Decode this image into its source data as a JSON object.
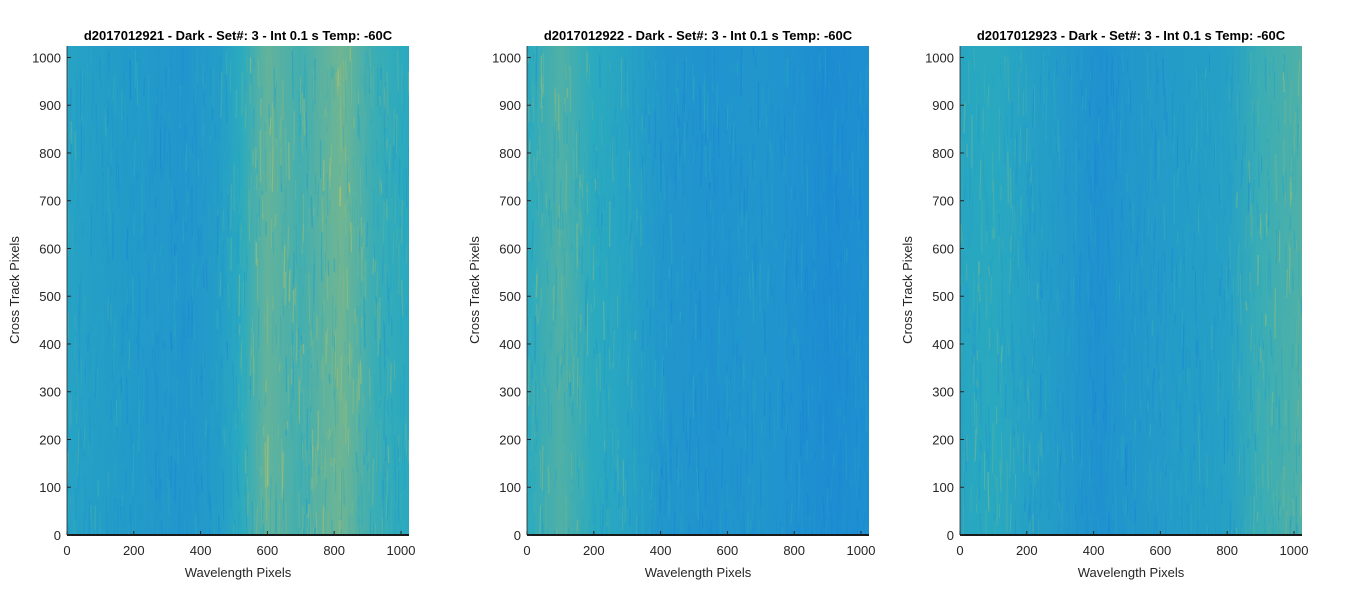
{
  "chart_data": [
    {
      "type": "heatmap",
      "title": "d2017012921 - Dark - Set#: 3 - Int 0.1 s Temp: -60C",
      "xlabel": "Wavelength Pixels",
      "ylabel": "Cross Track Pixels",
      "xlim": [
        0,
        1024
      ],
      "ylim": [
        0,
        1024
      ],
      "xticks": [
        0,
        200,
        400,
        600,
        800,
        1000
      ],
      "yticks": [
        0,
        100,
        200,
        300,
        400,
        500,
        600,
        700,
        800,
        900,
        1000
      ],
      "column_profile": [
        {
          "x": 0,
          "level": 0.4
        },
        {
          "x": 100,
          "level": 0.32
        },
        {
          "x": 250,
          "level": 0.26
        },
        {
          "x": 350,
          "level": 0.22
        },
        {
          "x": 450,
          "level": 0.3
        },
        {
          "x": 520,
          "level": 0.5
        },
        {
          "x": 600,
          "level": 0.68
        },
        {
          "x": 700,
          "level": 0.58
        },
        {
          "x": 820,
          "level": 0.72
        },
        {
          "x": 920,
          "level": 0.55
        },
        {
          "x": 1024,
          "level": 0.48
        }
      ]
    },
    {
      "type": "heatmap",
      "title": "d2017012922 - Dark - Set#: 3 - Int 0.1 s Temp: -60C",
      "xlabel": "Wavelength Pixels",
      "ylabel": "Cross Track Pixels",
      "xlim": [
        0,
        1024
      ],
      "ylim": [
        0,
        1024
      ],
      "xticks": [
        0,
        200,
        400,
        600,
        800,
        1000
      ],
      "yticks": [
        0,
        100,
        200,
        300,
        400,
        500,
        600,
        700,
        800,
        900,
        1000
      ],
      "column_profile": [
        {
          "x": 0,
          "level": 0.5
        },
        {
          "x": 100,
          "level": 0.62
        },
        {
          "x": 200,
          "level": 0.5
        },
        {
          "x": 300,
          "level": 0.4
        },
        {
          "x": 400,
          "level": 0.24
        },
        {
          "x": 550,
          "level": 0.18
        },
        {
          "x": 700,
          "level": 0.22
        },
        {
          "x": 800,
          "level": 0.16
        },
        {
          "x": 900,
          "level": 0.1
        },
        {
          "x": 1024,
          "level": 0.14
        }
      ]
    },
    {
      "type": "heatmap",
      "title": "d2017012923 - Dark - Set#: 3 - Int 0.1 s Temp: -60C",
      "xlabel": "Wavelength Pixels",
      "ylabel": "Cross Track Pixels",
      "xlim": [
        0,
        1024
      ],
      "ylim": [
        0,
        1024
      ],
      "xticks": [
        0,
        200,
        400,
        600,
        800,
        1000
      ],
      "yticks": [
        0,
        100,
        200,
        300,
        400,
        500,
        600,
        700,
        800,
        900,
        1000
      ],
      "column_profile": [
        {
          "x": 0,
          "level": 0.45
        },
        {
          "x": 100,
          "level": 0.48
        },
        {
          "x": 200,
          "level": 0.38
        },
        {
          "x": 300,
          "level": 0.28
        },
        {
          "x": 420,
          "level": 0.16
        },
        {
          "x": 500,
          "level": 0.24
        },
        {
          "x": 650,
          "level": 0.3
        },
        {
          "x": 800,
          "level": 0.36
        },
        {
          "x": 900,
          "level": 0.55
        },
        {
          "x": 1024,
          "level": 0.62
        }
      ]
    }
  ],
  "colors": {
    "low": "#1a86d6",
    "mid": "#2aaabf",
    "high": "#c7c45a",
    "axis": "#262626",
    "baseline": "#1a1a1a"
  }
}
